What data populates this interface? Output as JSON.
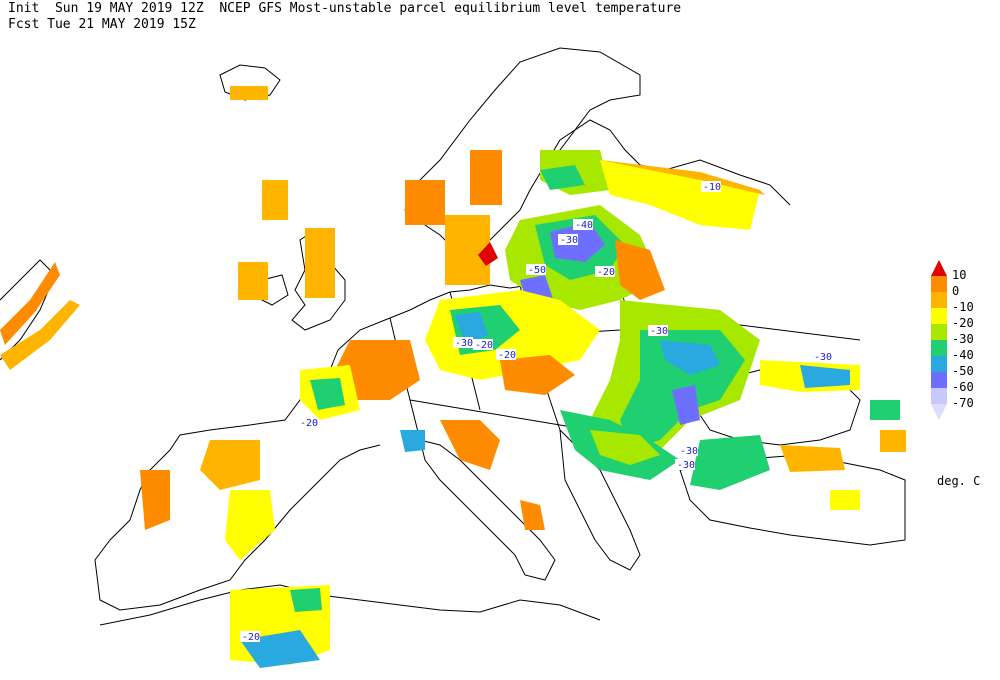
{
  "header": {
    "line1": "Init  Sun 19 MAY 2019 12Z  NCEP GFS Most-unstable parcel equilibrium level temperature",
    "line2": "Fcst Tue 21 MAY 2019 15Z"
  },
  "legend": {
    "labels": [
      "10",
      "0",
      "-10",
      "-20",
      "-30",
      "-40",
      "-50",
      "-60",
      "-70"
    ],
    "colors": [
      "#e00000",
      "#ff8c00",
      "#ffb400",
      "#ffff00",
      "#a8e800",
      "#20d070",
      "#2aa8e0",
      "#6f6fff",
      "#c8c8ff"
    ],
    "units": "deg. C"
  },
  "map": {
    "contour_labels": [
      {
        "text": "-10"
      },
      {
        "text": "-30"
      },
      {
        "text": "-40"
      },
      {
        "text": "-50"
      },
      {
        "text": "-20"
      },
      {
        "text": "-30"
      },
      {
        "text": "-20"
      },
      {
        "text": "-30"
      },
      {
        "text": "-20"
      },
      {
        "text": "-30"
      },
      {
        "text": "-30"
      },
      {
        "text": "-20"
      },
      {
        "text": "-30"
      },
      {
        "text": "-20"
      }
    ]
  }
}
